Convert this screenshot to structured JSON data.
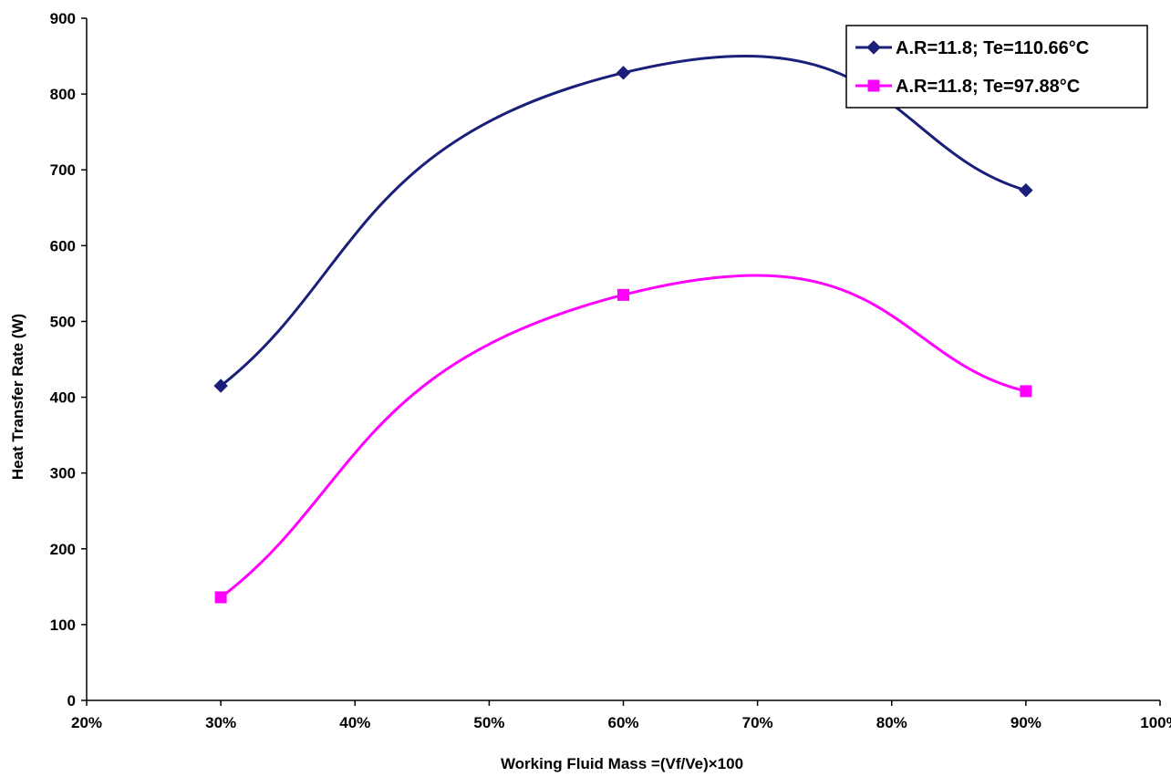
{
  "chart_data": {
    "type": "line",
    "title": "",
    "xlabel": "Working Fluid Mass =(Vf/Ve)×100",
    "ylabel": "Heat Transfer Rate (W)",
    "x_ticks": [
      "20%",
      "30%",
      "40%",
      "50%",
      "60%",
      "70%",
      "80%",
      "90%",
      "100%"
    ],
    "y_ticks": [
      "0",
      "100",
      "200",
      "300",
      "400",
      "500",
      "600",
      "700",
      "800",
      "900"
    ],
    "xlim": [
      20,
      100
    ],
    "ylim": [
      0,
      900
    ],
    "x": [
      30,
      60,
      90
    ],
    "grid": false,
    "smoothed": true,
    "legend_position": "top-right",
    "series": [
      {
        "name": "A.R=11.8; Te=110.66°C",
        "values": [
          415,
          828,
          673
        ],
        "color": "#1a1f7a",
        "marker": "diamond"
      },
      {
        "name": "A.R=11.8; Te=97.88°C",
        "values": [
          136,
          535,
          408
        ],
        "color": "#ff00ff",
        "marker": "square"
      }
    ]
  }
}
